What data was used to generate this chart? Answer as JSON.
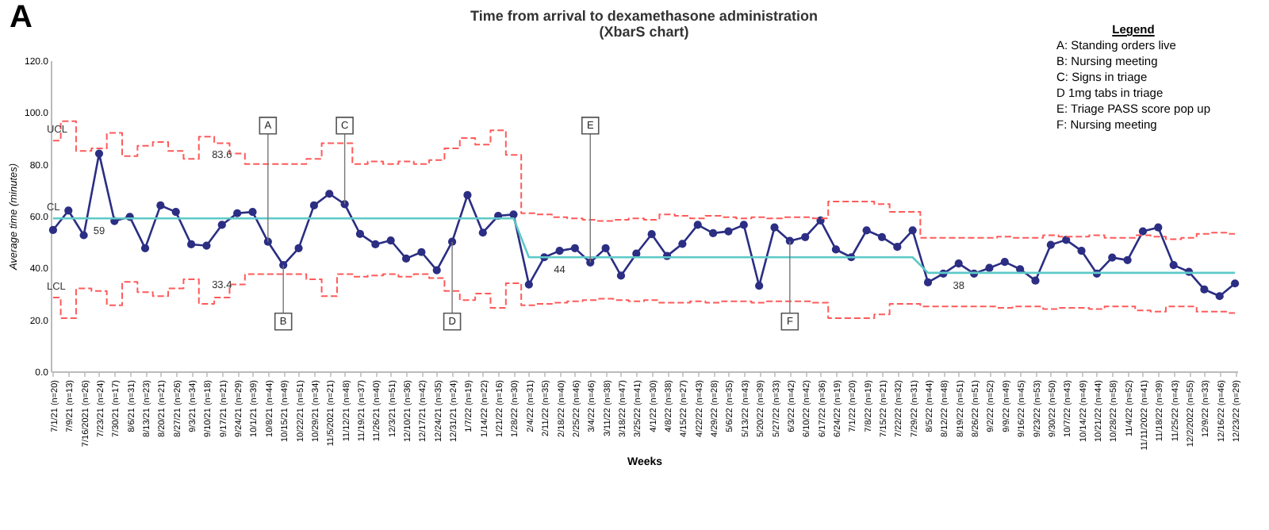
{
  "chart_data": {
    "type": "line",
    "title": "Time from arrival to dexamethasone administration",
    "subtitle": "(XbarS chart)",
    "xlabel": "Weeks",
    "ylabel": "Average time (minutes)",
    "categories": [
      "7/1/21 (n=20)",
      "7/9/21 (n=13)",
      "7/16/2021 (n=26)",
      "7/23/21 (n=24)",
      "7/30/21 (n=17)",
      "8/6/21 (n=31)",
      "8/13/21 (n=23)",
      "8/20/21 (n=21)",
      "8/27/21 (n=26)",
      "9/3/21 (n=34)",
      "9/10/21 (n=18)",
      "9/17/21 (n=21)",
      "9/24/21 (n=29)",
      "10/1/21 (n=39)",
      "10/8/21 (n=44)",
      "10/15/21 (n=49)",
      "10/22/21 (n=51)",
      "10/29/21 (n=34)",
      "11/5/2021 (n=21)",
      "11/12/21 (n=48)",
      "11/19/21 (n=37)",
      "11/26/21 (n=40)",
      "12/3/21 (n=51)",
      "12/10/21 (n=36)",
      "12/17/21 (n=42)",
      "12/24/21 (n=35)",
      "12/31/21 (n=24)",
      "1/7/22 (n=19)",
      "1/14/22 (n=22)",
      "1/21/22 (n=16)",
      "1/28/22 (n=30)",
      "2/4/22 (n=31)",
      "2/11/22 (n=35)",
      "2/18/22 (n=40)",
      "2/25/22 (n=46)",
      "3/4/22 (n=46)",
      "3/11/22 (n=38)",
      "3/18/22 (n=47)",
      "3/25/22 (n=41)",
      "4/1/22 (n=30)",
      "4/8/22 (n=38)",
      "4/15/22 (n=27)",
      "4/22/22 (n=43)",
      "4/29/22 (n=28)",
      "5/6/22 (n=35)",
      "5/13/22 (n=43)",
      "5/20/22 (n=39)",
      "5/27/22 (n=33)",
      "6/3/22 (n=42)",
      "6/10/22 (n=42)",
      "6/17/22 (n=36)",
      "6/24/22 (n=19)",
      "7/1/22 (n=20)",
      "7/8/22 (n=19)",
      "7/15/22 (n=21)",
      "7/22/22 (n=32)",
      "7/29/22 (n=31)",
      "8/5/22 (n=44)",
      "8/12/22 (n=48)",
      "8/19/22 (n=51)",
      "8/26/22 (n=51)",
      "9/2/22 (n=52)",
      "9/9/22 (n=49)",
      "9/16/22 (n=45)",
      "9/23/22 (n=53)",
      "9/30/22 (n=50)",
      "10/7/22 (n=43)",
      "10/14/22 (n=49)",
      "10/21/22 (n=44)",
      "10/28/22 (n=58)",
      "11/4/22 (n=52)",
      "11/11/2022 (n=41)",
      "11/18/22 (n=39)",
      "11/25/22 (n=43)",
      "12/2/2022 (n=55)",
      "12/9/22 (n=33)",
      "12/16/22 (n=46)",
      "12/23/22 (n=29)"
    ],
    "series": [
      {
        "color": "#2b2e83",
        "values": [
          54.5,
          62,
          52.5,
          84,
          58,
          59.6,
          47.5,
          64,
          61.5,
          49,
          48.5,
          56.5,
          61,
          61.5,
          50,
          41,
          47.5,
          64,
          68.5,
          64.5,
          53,
          49,
          50.5,
          43.5,
          46,
          39,
          50,
          68,
          53.5,
          60,
          60.5,
          33.5,
          44,
          46.5,
          47.5,
          42,
          47.5,
          36.9,
          45.4,
          52.9,
          44.5,
          49.2,
          56.5,
          53.3,
          54,
          56.5,
          33,
          55.5,
          50.3,
          51.8,
          58.2,
          47,
          44,
          54.4,
          51.8,
          48,
          54.4,
          34.3,
          37.7,
          41.6,
          37.7,
          39.9,
          42.2,
          39.4,
          35,
          48.8,
          50.7,
          46.5,
          37.7,
          43.9,
          42.9,
          54,
          55.5,
          41,
          38.4,
          31.6,
          29,
          33.9
        ]
      },
      {
        "name": "UCL",
        "type": "step",
        "color": "#ff5a5a",
        "line_style": "dashed",
        "marker": "none",
        "values": [
          89,
          96.5,
          85,
          86,
          92,
          83,
          87,
          88.5,
          85,
          82,
          90.5,
          88,
          84,
          80,
          80,
          80,
          80,
          82,
          88,
          88,
          80,
          81,
          80,
          81,
          80,
          81.5,
          86,
          90,
          87.5,
          93,
          83.5,
          61,
          60.5,
          59.5,
          59,
          58.5,
          58,
          58.5,
          59,
          58.5,
          60.5,
          60,
          59,
          60,
          59.5,
          59,
          59.5,
          59,
          59.5,
          59.5,
          59,
          65.5,
          65.5,
          65.5,
          64.5,
          61.5,
          61.5,
          51.5,
          51.5,
          51.5,
          51.5,
          51.5,
          52,
          51.5,
          51.5,
          52.5,
          52,
          52,
          52.5,
          51.5,
          51.5,
          52.5,
          52,
          51,
          51.5,
          53,
          53.5,
          53
        ]
      },
      {
        "name": "CL",
        "type": "line",
        "color": "#5ec9c9",
        "line_style": "solid",
        "marker": "none",
        "values": [
          59,
          59,
          59,
          59,
          59,
          59,
          59,
          59,
          59,
          59,
          59,
          59,
          59,
          59,
          59,
          59,
          59,
          59,
          59,
          59,
          59,
          59,
          59,
          59,
          59,
          59,
          59,
          59,
          59,
          59,
          59,
          44,
          44,
          44,
          44,
          44,
          44,
          44,
          44,
          44,
          44,
          44,
          44,
          44,
          44,
          44,
          44,
          44,
          44,
          44,
          44,
          44,
          44,
          44,
          44,
          44,
          44,
          38,
          38,
          38,
          38,
          38,
          38,
          38,
          38,
          38,
          38,
          38,
          38,
          38,
          38,
          38,
          38,
          38,
          38,
          38,
          38,
          38
        ]
      },
      {
        "name": "LCL",
        "type": "step",
        "color": "#ff5a5a",
        "line_style": "dashed",
        "marker": "none",
        "values": [
          28.5,
          20.5,
          32,
          31,
          25.5,
          34.5,
          30.5,
          29,
          32,
          35.5,
          26,
          28.5,
          33.5,
          37.5,
          37.5,
          37.5,
          37.5,
          35.5,
          29,
          37.5,
          36.5,
          37,
          37.5,
          36.5,
          37.5,
          36,
          31,
          27.5,
          30,
          24.5,
          34,
          25.5,
          26,
          26.5,
          27,
          27.5,
          28,
          27.5,
          27,
          27.5,
          26.5,
          26.5,
          27,
          26.5,
          27,
          27,
          26.5,
          27,
          27,
          27,
          26.5,
          20.5,
          20.5,
          20.5,
          22,
          26,
          26,
          25,
          25,
          25,
          25,
          25,
          24.5,
          25,
          25,
          24,
          24.5,
          24.5,
          24,
          25,
          25,
          23.5,
          23,
          25,
          25,
          23,
          23,
          22.5
        ]
      }
    ],
    "marker": "circle",
    "line_style": "solid",
    "grid": false,
    "ylim": [
      0,
      120
    ],
    "yticks": [
      {
        "value": 0,
        "label": "0.0"
      },
      {
        "value": 20,
        "label": "20.0"
      },
      {
        "value": 40,
        "label": "40.0"
      },
      {
        "value": 60,
        "label": "60.0"
      },
      {
        "value": 80,
        "label": "80.0"
      },
      {
        "value": 100,
        "label": "100.0"
      },
      {
        "value": 120,
        "label": "120.0"
      }
    ],
    "annotations": [
      "A",
      "Legend",
      "A: Standing orders live",
      "B: Nursing meeting",
      "C: Signs in triage",
      "D 1mg tabs in triage",
      "E: Triage PASS score pop up",
      "F: Nursing meeting",
      {
        "text": "A",
        "x": "10/8/21 (n=44)",
        "y": 50
      },
      {
        "text": "B",
        "x": "10/15/21 (n=49)",
        "y": 41
      },
      {
        "text": "C",
        "x": "11/12/21 (n=48)",
        "y": 64.5
      },
      {
        "text": "D",
        "x": "12/31/21 (n=24)",
        "y": 50
      },
      {
        "text": "E",
        "x": "3/4/22 (n=46)",
        "y": 42
      },
      {
        "text": "F",
        "x": "6/3/22 (n=42)",
        "y": 50.3
      },
      {
        "text": "83.6",
        "x": "9/17/21 (n=21)",
        "y": 83.6
      },
      {
        "text": "33.4",
        "x": "9/17/21 (n=21)",
        "y": 33.4
      },
      {
        "text": "59",
        "x": "7/23/21 (n=24)",
        "y": 59
      },
      {
        "text": "44",
        "x": "2/18/22 (n=40)",
        "y": 44
      },
      {
        "text": "38",
        "x": "8/19/22 (n=51)",
        "y": 38
      }
    ]
  }
}
